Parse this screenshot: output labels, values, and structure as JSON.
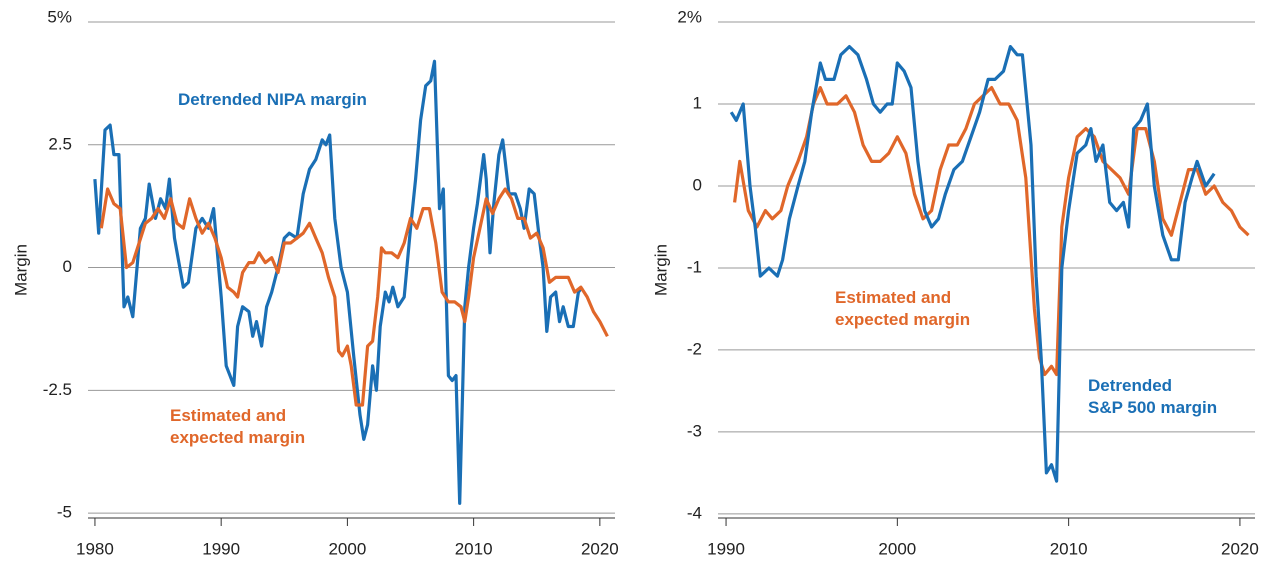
{
  "chart_data": [
    {
      "type": "line",
      "ylabel": "Margin",
      "xlim": [
        1979.45,
        2021.2
      ],
      "xticks": [
        1980,
        1990,
        2000,
        2010,
        2020
      ],
      "ylim": [
        -5.1,
        5
      ],
      "yticks": [
        {
          "value": 5,
          "label": "5%"
        },
        2.5,
        0,
        -2.5,
        -5
      ],
      "grid": true,
      "series": [
        {
          "name": "Detrended NIPA margin",
          "color": "#1a6fb5",
          "x": [
            1980,
            1980.3,
            1980.8,
            1981.2,
            1981.5,
            1981.9,
            1982.3,
            1982.6,
            1983,
            1983.6,
            1984,
            1984.3,
            1984.8,
            1985.2,
            1985.6,
            1985.9,
            1986.3,
            1987,
            1987.4,
            1988,
            1988.5,
            1989,
            1989.4,
            1990,
            1990.4,
            1990.7,
            1991,
            1991.3,
            1991.7,
            1992.2,
            1992.5,
            1992.8,
            1993.2,
            1993.6,
            1994,
            1994.5,
            1995,
            1995.4,
            1996,
            1996.5,
            1997,
            1997.5,
            1998,
            1998.3,
            1998.6,
            1999,
            1999.5,
            2000,
            2000.5,
            2001,
            2001.3,
            2001.6,
            2002,
            2002.3,
            2002.6,
            2003,
            2003.3,
            2003.6,
            2004,
            2004.5,
            2005,
            2005.4,
            2005.8,
            2006.2,
            2006.6,
            2006.9,
            2007.3,
            2007.6,
            2008,
            2008.3,
            2008.6,
            2008.9,
            2009.3,
            2009.6,
            2010,
            2010.3,
            2010.8,
            2011,
            2011.3,
            2011.6,
            2012,
            2012.3,
            2012.8,
            2013.3,
            2013.7,
            2014,
            2014.4,
            2014.8,
            2015.2,
            2015.5,
            2015.8,
            2016.1,
            2016.5,
            2016.8,
            2017.1,
            2017.5,
            2017.9,
            2018.3,
            2018.6
          ],
          "values": [
            1.8,
            0.7,
            2.8,
            2.9,
            2.3,
            2.3,
            -0.8,
            -0.6,
            -1.0,
            0.8,
            1.0,
            1.7,
            1.0,
            1.4,
            1.2,
            1.8,
            0.6,
            -0.4,
            -0.3,
            0.8,
            1.0,
            0.8,
            1.2,
            -0.6,
            -2.0,
            -2.2,
            -2.4,
            -1.2,
            -0.8,
            -0.9,
            -1.4,
            -1.1,
            -1.6,
            -0.8,
            -0.5,
            0.0,
            0.6,
            0.7,
            0.6,
            1.5,
            2.0,
            2.2,
            2.6,
            2.5,
            2.7,
            1.0,
            0.0,
            -0.5,
            -1.8,
            -3.0,
            -3.5,
            -3.2,
            -2.0,
            -2.5,
            -1.2,
            -0.5,
            -0.7,
            -0.4,
            -0.8,
            -0.6,
            0.8,
            1.8,
            3.0,
            3.7,
            3.8,
            4.2,
            1.2,
            1.6,
            -2.2,
            -2.3,
            -2.2,
            -4.8,
            -0.8,
            0.0,
            0.8,
            1.3,
            2.3,
            1.8,
            0.3,
            1.3,
            2.3,
            2.6,
            1.5,
            1.5,
            1.2,
            0.8,
            1.6,
            1.5,
            0.6,
            0.0,
            -1.3,
            -0.6,
            -0.5,
            -1.1,
            -0.8,
            -1.2,
            -1.2,
            -0.5,
            -0.4
          ]
        },
        {
          "name": "Estimated and\nexpected margin",
          "color": "#e0672a",
          "x": [
            1980.5,
            1981,
            1981.5,
            1982,
            1982.5,
            1983,
            1983.5,
            1984,
            1984.5,
            1985,
            1985.5,
            1986,
            1986.5,
            1987,
            1987.5,
            1988,
            1988.5,
            1989,
            1989.5,
            1990,
            1990.5,
            1991,
            1991.3,
            1991.7,
            1992.2,
            1992.6,
            1993,
            1993.5,
            1994,
            1994.5,
            1995,
            1995.5,
            1996,
            1996.5,
            1997,
            1997.5,
            1998,
            1998.5,
            1999,
            1999.3,
            1999.6,
            2000,
            2000.3,
            2000.7,
            2001.2,
            2001.6,
            2002,
            2002.4,
            2002.7,
            2003,
            2003.5,
            2004,
            2004.5,
            2005,
            2005.5,
            2006,
            2006.5,
            2007,
            2007.5,
            2008,
            2008.5,
            2009,
            2009.3,
            2009.6,
            2010,
            2010.5,
            2011,
            2011.5,
            2012,
            2012.5,
            2013,
            2013.5,
            2014,
            2014.5,
            2015,
            2015.5,
            2016,
            2016.5,
            2017,
            2017.5,
            2018,
            2018.5,
            2019,
            2019.5,
            2020,
            2020.6
          ],
          "values": [
            0.8,
            1.6,
            1.3,
            1.2,
            0.0,
            0.1,
            0.5,
            0.9,
            1.0,
            1.2,
            1.0,
            1.4,
            0.9,
            0.8,
            1.4,
            1.0,
            0.7,
            0.9,
            0.6,
            0.2,
            -0.4,
            -0.5,
            -0.6,
            -0.1,
            0.1,
            0.1,
            0.3,
            0.1,
            0.2,
            -0.1,
            0.5,
            0.5,
            0.6,
            0.7,
            0.9,
            0.6,
            0.3,
            -0.2,
            -0.6,
            -1.7,
            -1.8,
            -1.6,
            -2.0,
            -2.8,
            -2.8,
            -1.6,
            -1.5,
            -0.6,
            0.4,
            0.3,
            0.3,
            0.2,
            0.5,
            1.0,
            0.8,
            1.2,
            1.2,
            0.5,
            -0.5,
            -0.7,
            -0.7,
            -0.8,
            -1.1,
            -0.6,
            0.2,
            0.8,
            1.4,
            1.1,
            1.4,
            1.6,
            1.4,
            1.0,
            1.0,
            0.6,
            0.7,
            0.4,
            -0.3,
            -0.2,
            -0.2,
            -0.2,
            -0.5,
            -0.4,
            -0.6,
            -0.9,
            -1.1,
            -1.4
          ]
        }
      ]
    },
    {
      "type": "line",
      "ylabel": "Margin",
      "xlim": [
        1989.53,
        2020.88
      ],
      "xticks": [
        1990,
        2000,
        2010,
        2020
      ],
      "ylim": [
        -4.05,
        2
      ],
      "yticks": [
        {
          "value": 2,
          "label": "2%"
        },
        1,
        0,
        -1,
        -2,
        -3,
        -4
      ],
      "grid": true,
      "series": [
        {
          "name": "Estimated and\nexpected margin",
          "color": "#e0672a",
          "x": [
            1990.5,
            1990.8,
            1991.3,
            1991.8,
            1992.3,
            1992.7,
            1993.2,
            1993.6,
            1994.2,
            1994.7,
            1995.1,
            1995.5,
            1995.9,
            1996.5,
            1997,
            1997.5,
            1998,
            1998.5,
            1999,
            1999.5,
            2000,
            2000.5,
            2001,
            2001.5,
            2002,
            2002.5,
            2003,
            2003.5,
            2004,
            2004.5,
            2005,
            2005.5,
            2006,
            2006.5,
            2007,
            2007.5,
            2008,
            2008.3,
            2008.6,
            2009,
            2009.3,
            2009.6,
            2010,
            2010.5,
            2011,
            2011.5,
            2012,
            2012.5,
            2013,
            2013.5,
            2014,
            2014.5,
            2015,
            2015.5,
            2016,
            2016.5,
            2017,
            2017.5,
            2018,
            2018.5,
            2019,
            2019.5,
            2020,
            2020.5
          ],
          "values": [
            -0.2,
            0.3,
            -0.3,
            -0.5,
            -0.3,
            -0.4,
            -0.3,
            0.0,
            0.3,
            0.6,
            1.0,
            1.2,
            1.0,
            1.0,
            1.1,
            0.9,
            0.5,
            0.3,
            0.3,
            0.4,
            0.6,
            0.4,
            -0.1,
            -0.4,
            -0.3,
            0.2,
            0.5,
            0.5,
            0.7,
            1.0,
            1.1,
            1.2,
            1.0,
            1.0,
            0.8,
            0.1,
            -1.5,
            -2.1,
            -2.3,
            -2.2,
            -2.3,
            -0.5,
            0.1,
            0.6,
            0.7,
            0.6,
            0.3,
            0.2,
            0.1,
            -0.1,
            0.7,
            0.7,
            0.3,
            -0.4,
            -0.6,
            -0.2,
            0.2,
            0.2,
            -0.1,
            0.0,
            -0.2,
            -0.3,
            -0.5,
            -0.6
          ]
        },
        {
          "name": "Detrended\nS&P 500 margin",
          "color": "#1a6fb5",
          "x": [
            1990.3,
            1990.6,
            1991,
            1991.4,
            1991.7,
            1992,
            1992.5,
            1993,
            1993.3,
            1993.7,
            1994.2,
            1994.6,
            1995,
            1995.5,
            1995.8,
            1996.3,
            1996.7,
            1997.2,
            1997.7,
            1998.2,
            1998.6,
            1999,
            1999.4,
            1999.7,
            2000,
            2000.4,
            2000.8,
            2001.2,
            2001.6,
            2002,
            2002.4,
            2002.8,
            2003.3,
            2003.8,
            2004.3,
            2004.8,
            2005.3,
            2005.7,
            2006.2,
            2006.6,
            2007,
            2007.3,
            2007.8,
            2008.1,
            2008.4,
            2008.7,
            2009,
            2009.3,
            2009.6,
            2010,
            2010.5,
            2011,
            2011.3,
            2011.6,
            2012,
            2012.4,
            2012.8,
            2013.2,
            2013.5,
            2013.8,
            2014.2,
            2014.6,
            2015,
            2015.5,
            2016,
            2016.4,
            2016.8,
            2017.2,
            2017.5,
            2018,
            2018.5
          ],
          "values": [
            0.9,
            0.8,
            1.0,
            0.0,
            -0.5,
            -1.1,
            -1.0,
            -1.1,
            -0.9,
            -0.4,
            0.0,
            0.3,
            0.9,
            1.5,
            1.3,
            1.3,
            1.6,
            1.7,
            1.6,
            1.3,
            1.0,
            0.9,
            1.0,
            1.0,
            1.5,
            1.4,
            1.2,
            0.3,
            -0.3,
            -0.5,
            -0.4,
            -0.1,
            0.2,
            0.3,
            0.6,
            0.9,
            1.3,
            1.3,
            1.4,
            1.7,
            1.6,
            1.6,
            0.5,
            -1.1,
            -2.1,
            -3.5,
            -3.4,
            -3.6,
            -1.0,
            -0.3,
            0.4,
            0.5,
            0.7,
            0.3,
            0.5,
            -0.2,
            -0.3,
            -0.2,
            -0.5,
            0.7,
            0.8,
            1.0,
            0.0,
            -0.6,
            -0.9,
            -0.9,
            -0.2,
            0.1,
            0.3,
            0.0,
            0.15
          ]
        }
      ]
    }
  ]
}
